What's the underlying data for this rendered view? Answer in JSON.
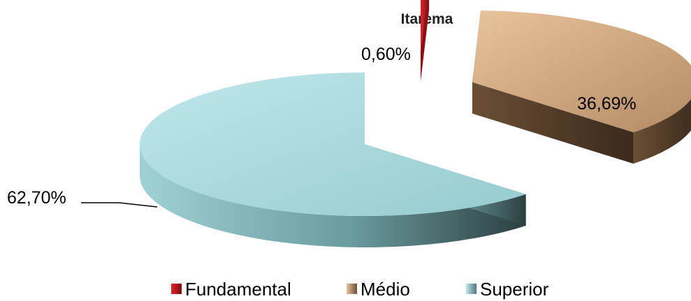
{
  "chart_data": {
    "type": "pie",
    "title": "Itarema",
    "categories": [
      "Fundamental",
      "Médio",
      "Superior"
    ],
    "values": [
      0.6,
      36.69,
      62.7
    ],
    "data_labels": [
      "0,60%",
      "36,69%",
      "62,70%"
    ],
    "legend_placement": "bottom",
    "exploded": true,
    "three_d": true
  },
  "colors": {
    "Fundamental": "#c0171c",
    "Médio": "#d8b08a",
    "Superior": "#a9dadd"
  }
}
